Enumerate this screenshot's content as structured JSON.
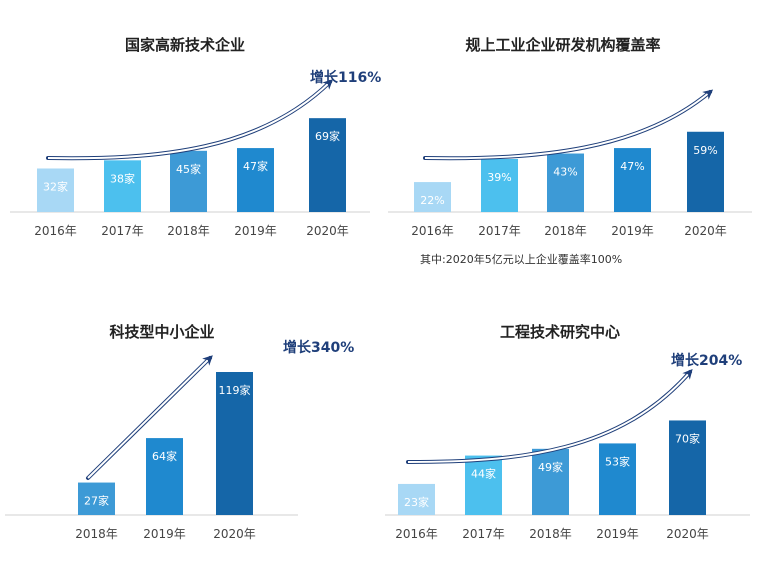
{
  "colors": {
    "bar": [
      "#a8d8f5",
      "#4cc0ee",
      "#3d9ad6",
      "#1f89cf",
      "#1566a8"
    ],
    "arrow": "#1f3f7a",
    "axis": "#d0d0d0"
  },
  "chart_data": [
    {
      "type": "bar",
      "title": "国家高新技术企业",
      "categories": [
        "2016年",
        "2017年",
        "2018年",
        "2019年",
        "2020年"
      ],
      "values": [
        32,
        38,
        45,
        47,
        69
      ],
      "labels": [
        "32家",
        "38家",
        "45家",
        "47家",
        "69家"
      ],
      "growth": "增长116%",
      "ylim": [
        0,
        75
      ],
      "note": ""
    },
    {
      "type": "bar",
      "title": "规上工业企业研发机构覆盖率",
      "categories": [
        "2016年",
        "2017年",
        "2018年",
        "2019年",
        "2020年"
      ],
      "values": [
        22,
        39,
        43,
        47,
        59
      ],
      "labels": [
        "22%",
        "39%",
        "43%",
        "47%",
        "59%"
      ],
      "growth": "",
      "ylim": [
        0,
        75
      ],
      "note": "其中:2020年5亿元以上企业覆盖率100%"
    },
    {
      "type": "bar",
      "title": "科技型中小企业",
      "categories": [
        "2018年",
        "2019年",
        "2020年"
      ],
      "values": [
        27,
        64,
        119
      ],
      "labels": [
        "27家",
        "64家",
        "119家"
      ],
      "growth": "增长340%",
      "ylim": [
        0,
        119
      ],
      "note": ""
    },
    {
      "type": "bar",
      "title": "工程技术研究中心",
      "categories": [
        "2016年",
        "2017年",
        "2018年",
        "2019年",
        "2020年"
      ],
      "values": [
        23,
        44,
        49,
        53,
        70
      ],
      "labels": [
        "23家",
        "44家",
        "49家",
        "53家",
        "70家"
      ],
      "growth": "增长204%",
      "ylim": [
        0,
        77
      ],
      "note": ""
    }
  ]
}
